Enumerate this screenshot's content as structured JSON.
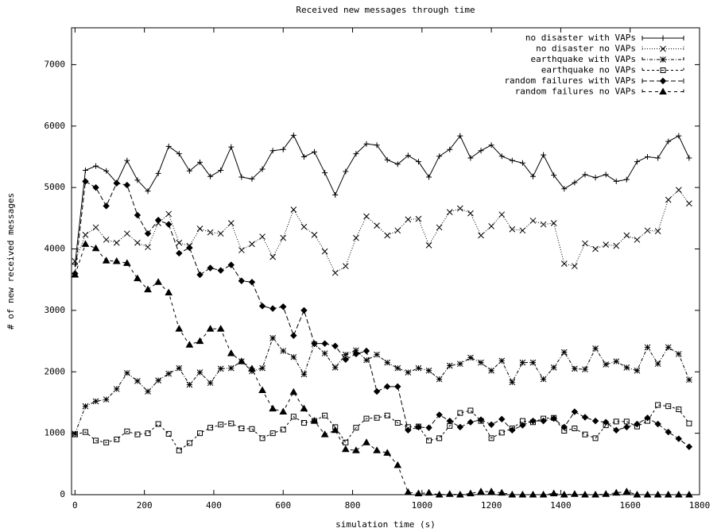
{
  "chart_data": {
    "type": "line",
    "title": "Received new messages through time",
    "x_label": "simulation time (s)",
    "y_label": "# of new received messages",
    "x": [
      0,
      30,
      60,
      90,
      120,
      150,
      180,
      210,
      240,
      270,
      300,
      330,
      360,
      390,
      420,
      450,
      480,
      510,
      540,
      570,
      600,
      630,
      660,
      690,
      720,
      750,
      780,
      810,
      840,
      870,
      900,
      930,
      960,
      990,
      1020,
      1050,
      1080,
      1110,
      1140,
      1170,
      1200,
      1230,
      1260,
      1290,
      1320,
      1350,
      1380,
      1410,
      1440,
      1470,
      1500,
      1530,
      1560,
      1590,
      1620,
      1650,
      1680,
      1710,
      1740,
      1770
    ],
    "xlim": [
      -10,
      1800
    ],
    "xticks": [
      0,
      200,
      400,
      600,
      800,
      1000,
      1200,
      1400,
      1600,
      1800
    ],
    "ylim": [
      0,
      7600
    ],
    "yticks": [
      0,
      1000,
      2000,
      3000,
      4000,
      5000,
      6000,
      7000
    ],
    "legend": "top-right",
    "grid": false,
    "series": [
      {
        "name": "no disaster with VAPs",
        "color": "#000000",
        "line_style": "solid",
        "marker": "plus",
        "values": [
          3750,
          5280,
          5350,
          5270,
          5080,
          5440,
          5120,
          4940,
          5230,
          5670,
          5550,
          5270,
          5410,
          5180,
          5280,
          5660,
          5170,
          5140,
          5300,
          5600,
          5620,
          5850,
          5500,
          5580,
          5240,
          4880,
          5260,
          5550,
          5710,
          5690,
          5450,
          5380,
          5520,
          5420,
          5170,
          5510,
          5620,
          5840,
          5480,
          5600,
          5690,
          5510,
          5440,
          5400,
          5180,
          5530,
          5200,
          4980,
          5080,
          5210,
          5160,
          5210,
          5100,
          5130,
          5420,
          5500,
          5480,
          5750,
          5840,
          5480
        ]
      },
      {
        "name": "no disaster no VAPs",
        "color": "#000000",
        "line_style": "dotted",
        "marker": "cross",
        "values": [
          3800,
          4230,
          4350,
          4150,
          4100,
          4250,
          4100,
          4030,
          4420,
          4570,
          4100,
          4050,
          4330,
          4270,
          4250,
          4420,
          3980,
          4080,
          4200,
          3870,
          4180,
          4640,
          4360,
          4230,
          3960,
          3610,
          3720,
          4180,
          4530,
          4380,
          4220,
          4300,
          4480,
          4490,
          4060,
          4350,
          4600,
          4660,
          4580,
          4220,
          4370,
          4560,
          4320,
          4300,
          4460,
          4400,
          4420,
          3760,
          3720,
          4090,
          4000,
          4070,
          4050,
          4220,
          4150,
          4300,
          4290,
          4800,
          4960,
          4740
        ]
      },
      {
        "name": "earthquake with VAPs",
        "color": "#000000",
        "line_style": "dashdot",
        "marker": "star",
        "values": [
          990,
          1440,
          1520,
          1550,
          1720,
          1980,
          1850,
          1680,
          1860,
          1970,
          2060,
          1790,
          1990,
          1820,
          2050,
          2060,
          2170,
          2010,
          2060,
          2550,
          2340,
          2240,
          1960,
          2450,
          2300,
          2070,
          2280,
          2350,
          2190,
          2280,
          2150,
          2060,
          1990,
          2060,
          2020,
          1880,
          2100,
          2130,
          2230,
          2150,
          2020,
          2180,
          1830,
          2150,
          2150,
          1880,
          2070,
          2320,
          2050,
          2040,
          2380,
          2120,
          2170,
          2070,
          2020,
          2400,
          2130,
          2400,
          2290,
          1870
        ]
      },
      {
        "name": "earthquake no VAPs",
        "color": "#000000",
        "line_style": "dashed",
        "marker": "square",
        "values": [
          980,
          1020,
          880,
          850,
          900,
          1030,
          980,
          1000,
          1150,
          990,
          720,
          840,
          1000,
          1090,
          1140,
          1160,
          1080,
          1070,
          920,
          1000,
          1060,
          1270,
          1170,
          1200,
          1290,
          1100,
          850,
          1090,
          1240,
          1250,
          1290,
          1170,
          1100,
          1110,
          880,
          920,
          1120,
          1330,
          1370,
          1200,
          920,
          1010,
          1080,
          1200,
          1180,
          1240,
          1250,
          1040,
          1080,
          980,
          920,
          1130,
          1190,
          1190,
          1110,
          1200,
          1460,
          1440,
          1390,
          1160
        ]
      },
      {
        "name": "random failures with VAPs",
        "color": "#000000",
        "line_style": "longdash",
        "marker": "diamond",
        "values": [
          3600,
          5100,
          5000,
          4700,
          5070,
          5040,
          4550,
          4250,
          4470,
          4400,
          3930,
          4020,
          3580,
          3690,
          3650,
          3740,
          3480,
          3460,
          3070,
          3030,
          3060,
          2590,
          3000,
          2460,
          2460,
          2420,
          2200,
          2290,
          2340,
          1680,
          1760,
          1760,
          1050,
          1100,
          1090,
          1300,
          1200,
          1100,
          1180,
          1220,
          1140,
          1230,
          1050,
          1130,
          1200,
          1200,
          1240,
          1100,
          1350,
          1260,
          1200,
          1180,
          1050,
          1100,
          1150,
          1250,
          1150,
          1020,
          910,
          780
        ]
      },
      {
        "name": "random failures no VAPs",
        "color": "#000000",
        "line_style": "shortdash",
        "marker": "triangle",
        "values": [
          3580,
          4080,
          4010,
          3810,
          3800,
          3770,
          3520,
          3340,
          3460,
          3290,
          2700,
          2440,
          2500,
          2700,
          2700,
          2300,
          2170,
          2050,
          1700,
          1400,
          1350,
          1670,
          1400,
          1200,
          980,
          1050,
          740,
          720,
          850,
          720,
          680,
          480,
          40,
          20,
          30,
          0,
          10,
          0,
          20,
          50,
          50,
          30,
          0,
          0,
          0,
          0,
          20,
          0,
          10,
          0,
          0,
          10,
          30,
          50,
          0,
          0,
          0,
          0,
          0,
          0
        ]
      }
    ]
  }
}
